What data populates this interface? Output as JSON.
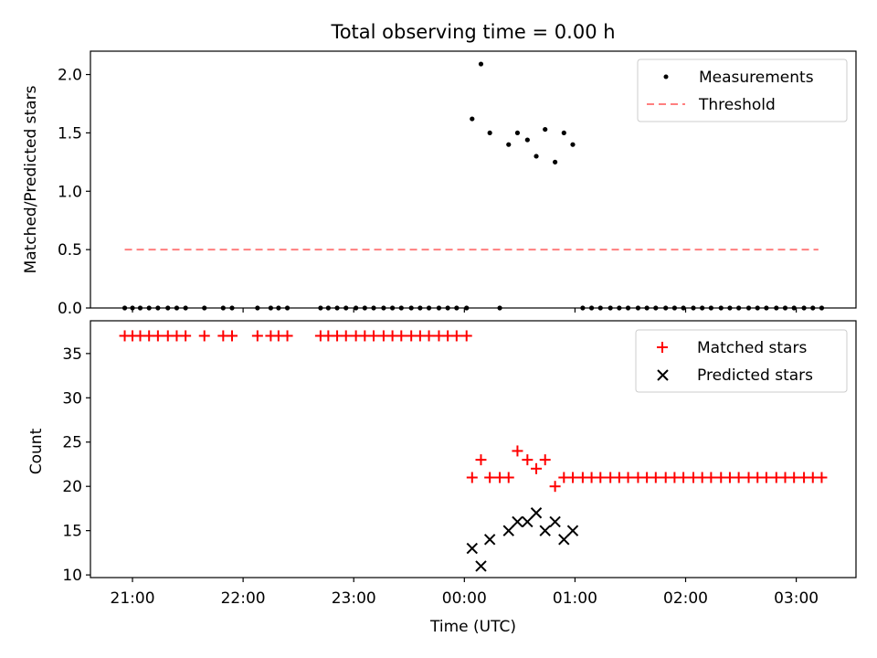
{
  "chart_data": {
    "title": "Total observing time = 0.00 h",
    "xlabel": "Time (UTC)",
    "x_tick_labels": [
      "21:00",
      "22:00",
      "23:00",
      "00:00",
      "01:00",
      "02:00",
      "03:00"
    ],
    "x_range_hours": [
      20.62,
      27.54
    ],
    "panels": [
      {
        "type": "scatter",
        "ylabel": "Matched/Predicted stars",
        "ylim": [
          0,
          2.2
        ],
        "y_ticks": [
          "0.0",
          "0.5",
          "1.0",
          "1.5",
          "2.0"
        ],
        "legend": {
          "placement": "top-right",
          "entries": [
            "Measurements",
            "Threshold"
          ]
        },
        "series": [
          {
            "name": "Measurements",
            "marker": "dot",
            "color": "#000000",
            "points": [
              [
                20.93,
                0
              ],
              [
                21.0,
                0
              ],
              [
                21.07,
                0
              ],
              [
                21.15,
                0
              ],
              [
                21.23,
                0
              ],
              [
                21.32,
                0
              ],
              [
                21.4,
                0
              ],
              [
                21.48,
                0
              ],
              [
                21.65,
                0
              ],
              [
                21.82,
                0
              ],
              [
                21.9,
                0
              ],
              [
                22.13,
                0
              ],
              [
                22.25,
                0
              ],
              [
                22.32,
                0
              ],
              [
                22.4,
                0
              ],
              [
                22.7,
                0
              ],
              [
                22.77,
                0
              ],
              [
                22.85,
                0
              ],
              [
                22.93,
                0
              ],
              [
                23.02,
                0
              ],
              [
                23.1,
                0
              ],
              [
                23.18,
                0
              ],
              [
                23.27,
                0
              ],
              [
                23.35,
                0
              ],
              [
                23.43,
                0
              ],
              [
                23.52,
                0
              ],
              [
                23.6,
                0
              ],
              [
                23.68,
                0
              ],
              [
                23.77,
                0
              ],
              [
                23.85,
                0
              ],
              [
                23.93,
                0
              ],
              [
                24.02,
                0
              ],
              [
                24.07,
                1.62
              ],
              [
                24.15,
                2.09
              ],
              [
                24.23,
                1.5
              ],
              [
                24.32,
                0
              ],
              [
                24.4,
                1.4
              ],
              [
                24.48,
                1.5
              ],
              [
                24.57,
                1.44
              ],
              [
                24.65,
                1.3
              ],
              [
                24.73,
                1.53
              ],
              [
                24.82,
                1.25
              ],
              [
                24.9,
                1.5
              ],
              [
                24.98,
                1.4
              ],
              [
                25.07,
                0
              ],
              [
                25.15,
                0
              ],
              [
                25.23,
                0
              ],
              [
                25.32,
                0
              ],
              [
                25.4,
                0
              ],
              [
                25.48,
                0
              ],
              [
                25.57,
                0
              ],
              [
                25.65,
                0
              ],
              [
                25.73,
                0
              ],
              [
                25.82,
                0
              ],
              [
                25.9,
                0
              ],
              [
                25.98,
                0
              ],
              [
                26.07,
                0
              ],
              [
                26.15,
                0
              ],
              [
                26.23,
                0
              ],
              [
                26.32,
                0
              ],
              [
                26.4,
                0
              ],
              [
                26.48,
                0
              ],
              [
                26.57,
                0
              ],
              [
                26.65,
                0
              ],
              [
                26.73,
                0
              ],
              [
                26.82,
                0
              ],
              [
                26.9,
                0
              ],
              [
                26.98,
                0
              ],
              [
                27.07,
                0
              ],
              [
                27.15,
                0
              ],
              [
                27.23,
                0
              ]
            ]
          },
          {
            "name": "Threshold",
            "marker": "dashed-line",
            "color": "#ff7f7f",
            "points": [
              [
                20.93,
                0.5
              ],
              [
                27.2,
                0.5
              ]
            ]
          }
        ]
      },
      {
        "type": "scatter",
        "ylabel": "Count",
        "ylim": [
          9.7,
          38.7
        ],
        "y_ticks": [
          "10",
          "15",
          "20",
          "25",
          "30",
          "35"
        ],
        "legend": {
          "placement": "top-right",
          "entries": [
            "Matched stars",
            "Predicted stars"
          ]
        },
        "series": [
          {
            "name": "Matched stars",
            "marker": "plus",
            "color": "#ff0000",
            "points": [
              [
                20.93,
                37
              ],
              [
                21.0,
                37
              ],
              [
                21.07,
                37
              ],
              [
                21.15,
                37
              ],
              [
                21.23,
                37
              ],
              [
                21.32,
                37
              ],
              [
                21.4,
                37
              ],
              [
                21.48,
                37
              ],
              [
                21.65,
                37
              ],
              [
                21.82,
                37
              ],
              [
                21.9,
                37
              ],
              [
                22.13,
                37
              ],
              [
                22.25,
                37
              ],
              [
                22.32,
                37
              ],
              [
                22.4,
                37
              ],
              [
                22.7,
                37
              ],
              [
                22.77,
                37
              ],
              [
                22.85,
                37
              ],
              [
                22.93,
                37
              ],
              [
                23.02,
                37
              ],
              [
                23.1,
                37
              ],
              [
                23.18,
                37
              ],
              [
                23.27,
                37
              ],
              [
                23.35,
                37
              ],
              [
                23.43,
                37
              ],
              [
                23.52,
                37
              ],
              [
                23.6,
                37
              ],
              [
                23.68,
                37
              ],
              [
                23.77,
                37
              ],
              [
                23.85,
                37
              ],
              [
                23.93,
                37
              ],
              [
                24.02,
                37
              ],
              [
                24.07,
                21
              ],
              [
                24.15,
                23
              ],
              [
                24.23,
                21
              ],
              [
                24.32,
                21
              ],
              [
                24.4,
                21
              ],
              [
                24.48,
                24
              ],
              [
                24.57,
                23
              ],
              [
                24.65,
                22
              ],
              [
                24.73,
                23
              ],
              [
                24.82,
                20
              ],
              [
                24.9,
                21
              ],
              [
                24.98,
                21
              ],
              [
                25.07,
                21
              ],
              [
                25.15,
                21
              ],
              [
                25.23,
                21
              ],
              [
                25.32,
                21
              ],
              [
                25.4,
                21
              ],
              [
                25.48,
                21
              ],
              [
                25.57,
                21
              ],
              [
                25.65,
                21
              ],
              [
                25.73,
                21
              ],
              [
                25.82,
                21
              ],
              [
                25.9,
                21
              ],
              [
                25.98,
                21
              ],
              [
                26.07,
                21
              ],
              [
                26.15,
                21
              ],
              [
                26.23,
                21
              ],
              [
                26.32,
                21
              ],
              [
                26.4,
                21
              ],
              [
                26.48,
                21
              ],
              [
                26.57,
                21
              ],
              [
                26.65,
                21
              ],
              [
                26.73,
                21
              ],
              [
                26.82,
                21
              ],
              [
                26.9,
                21
              ],
              [
                26.98,
                21
              ],
              [
                27.07,
                21
              ],
              [
                27.15,
                21
              ],
              [
                27.23,
                21
              ]
            ]
          },
          {
            "name": "Predicted stars",
            "marker": "x",
            "color": "#000000",
            "points": [
              [
                24.07,
                13
              ],
              [
                24.15,
                11
              ],
              [
                24.23,
                14
              ],
              [
                24.4,
                15
              ],
              [
                24.48,
                16
              ],
              [
                24.57,
                16
              ],
              [
                24.65,
                17
              ],
              [
                24.73,
                15
              ],
              [
                24.82,
                16
              ],
              [
                24.9,
                14
              ],
              [
                24.98,
                15
              ]
            ]
          }
        ]
      }
    ]
  }
}
